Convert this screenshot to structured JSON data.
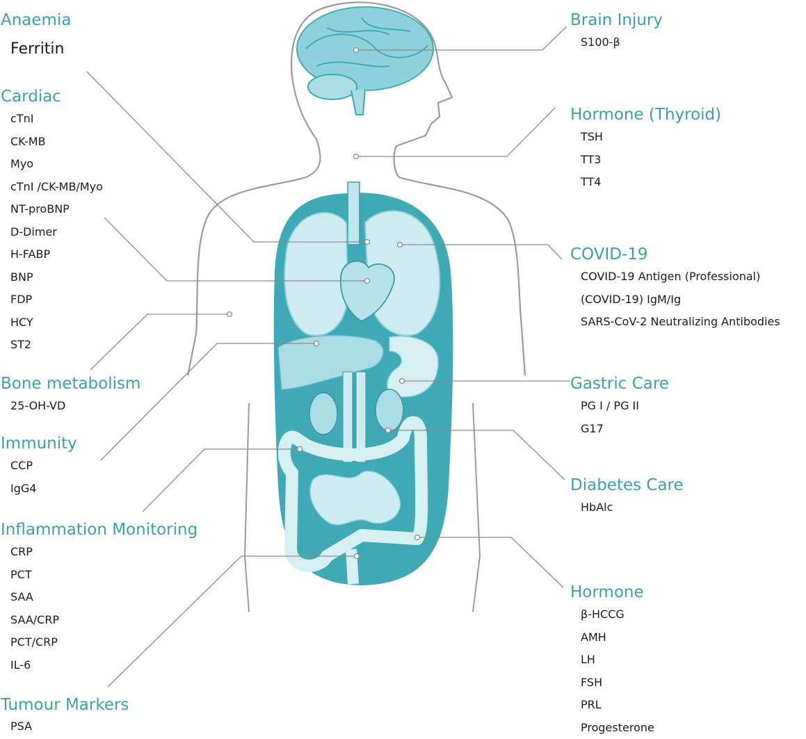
{
  "colors": {
    "accent": "#3d9ea8",
    "organ_fill": "#3fa9b6",
    "organ_light": "#d6eff2",
    "outline": "#9a9a9a",
    "leader": "#8a8a8a"
  },
  "left_groups": [
    {
      "title": "Anaemia",
      "items": [
        "Ferritin"
      ],
      "big": true
    },
    {
      "title": "Cardiac",
      "items": [
        "cTnI",
        "CK-MB",
        "Myo",
        "cTnI /CK-MB/Myo",
        "NT-proBNP",
        "D-Dimer",
        "H-FABP",
        "BNP",
        "FDP",
        "HCY",
        "ST2"
      ]
    },
    {
      "title": "Bone metabolism",
      "items": [
        "25-OH-VD"
      ]
    },
    {
      "title": "Immunity",
      "items": [
        "CCP",
        "IgG4"
      ]
    },
    {
      "title": "Inflammation Monitoring",
      "items": [
        "CRP",
        "PCT",
        "SAA",
        "SAA/CRP",
        "PCT/CRP",
        "IL-6"
      ]
    },
    {
      "title": "Tumour Markers",
      "items": [
        "PSA"
      ]
    }
  ],
  "right_groups": [
    {
      "title": "Brain Injury",
      "items": [
        "S100-β"
      ]
    },
    {
      "title": "Hormone (Thyroid)",
      "items": [
        "TSH",
        "TT3",
        "TT4"
      ]
    },
    {
      "title": "COVID-19",
      "items": [
        "COVID-19 Antigen (Professional)",
        "(COVID-19) IgM/Ig",
        "SARS-CoV-2 Neutralizing Antibodies"
      ]
    },
    {
      "title": "Gastric Care",
      "items": [
        "PG I / PG II",
        "G17"
      ]
    },
    {
      "title": "Diabetes Care",
      "items": [
        "HbAlc"
      ]
    },
    {
      "title": "Hormone",
      "items": [
        "β-HCCG",
        "AMH",
        "LH",
        "FSH",
        "PRL",
        "Progesterone"
      ]
    }
  ]
}
